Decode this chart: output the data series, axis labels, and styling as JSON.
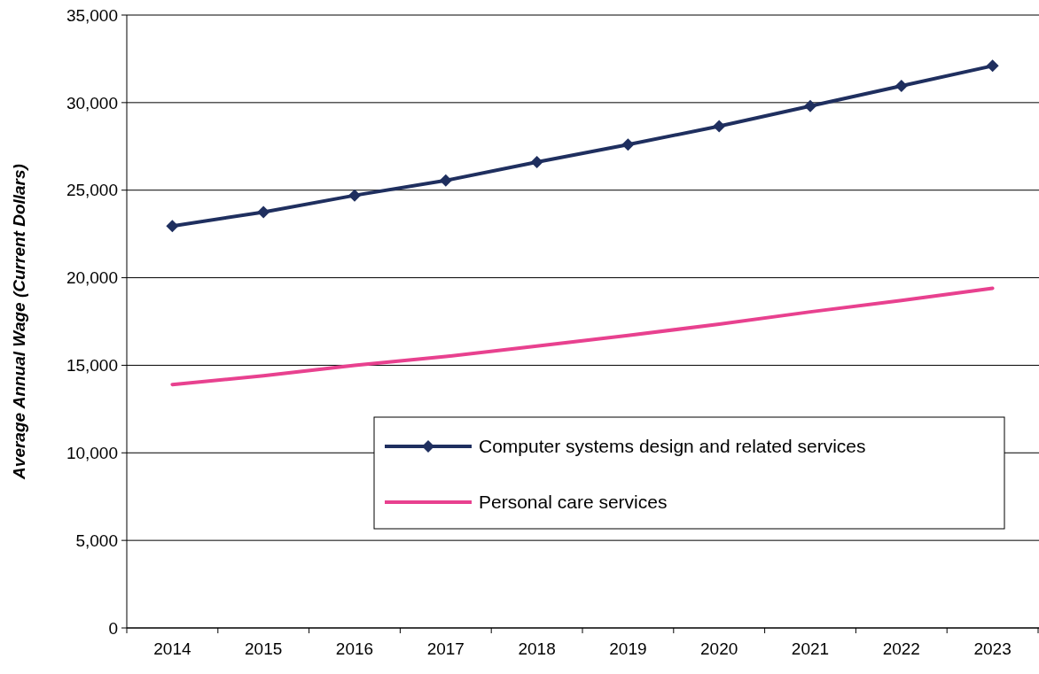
{
  "chart_data": {
    "type": "line",
    "ylabel": "Average Annual Wage (Current Dollars)",
    "categories": [
      "2014",
      "2015",
      "2016",
      "2017",
      "2018",
      "2019",
      "2020",
      "2021",
      "2022",
      "2023"
    ],
    "series": [
      {
        "name": "Computer systems design and related services",
        "color": "#1f2f5f",
        "marker": "diamond",
        "values": [
          22950,
          23750,
          24700,
          25550,
          26600,
          27600,
          28650,
          29800,
          30950,
          32100
        ]
      },
      {
        "name": "Personal care services",
        "color": "#e8418f",
        "marker": "none",
        "values": [
          13900,
          14400,
          15000,
          15500,
          16100,
          16700,
          17350,
          18050,
          18700,
          19400
        ]
      }
    ],
    "ylim": [
      0,
      35000
    ],
    "yticks": [
      {
        "value": 0,
        "label": "0"
      },
      {
        "value": 5000,
        "label": "5,000"
      },
      {
        "value": 10000,
        "label": "10,000"
      },
      {
        "value": 15000,
        "label": "15,000"
      },
      {
        "value": 20000,
        "label": "20,000"
      },
      {
        "value": 25000,
        "label": "25,000"
      },
      {
        "value": 30000,
        "label": "30,000"
      },
      {
        "value": 35000,
        "label": "35,000"
      }
    ],
    "grid": "y",
    "legend": "bottom right"
  }
}
